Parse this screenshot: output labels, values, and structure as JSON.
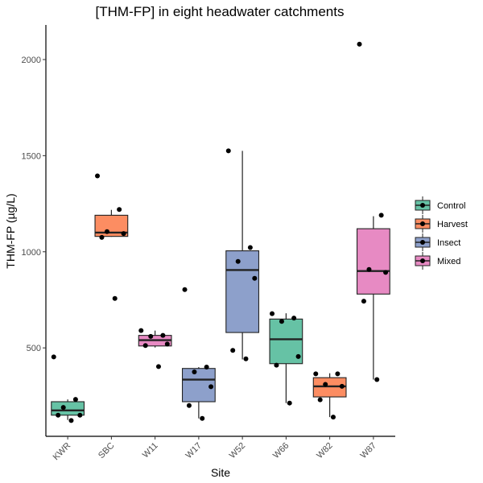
{
  "chart_data": {
    "type": "box",
    "title": "[THM-FP] in eight headwater catchments",
    "xlabel": "Site",
    "ylabel": "THM-FP (µg/L)",
    "ylim": [
      40,
      2180
    ],
    "yticks": [
      500,
      1000,
      1500,
      2000
    ],
    "categories": [
      "KWR",
      "SBC",
      "W11",
      "W17",
      "W52",
      "W66",
      "W82",
      "W87"
    ],
    "legend": {
      "position": "right",
      "entries": [
        {
          "name": "Control",
          "color": "#66c2a5"
        },
        {
          "name": "Harvest",
          "color": "#fc8d62"
        },
        {
          "name": "Insect",
          "color": "#8da0cb"
        },
        {
          "name": "Mixed",
          "color": "#e78ac3"
        }
      ]
    },
    "boxes": [
      {
        "site": "KWR",
        "group": "Control",
        "whisker_low": 125,
        "q1": 150,
        "median": 175,
        "q3": 220,
        "whisker_high": 232,
        "points": [
          453,
          232,
          190,
          150,
          150,
          122
        ]
      },
      {
        "site": "SBC",
        "group": "Harvest",
        "whisker_low": 1078,
        "q1": 1080,
        "median": 1100,
        "q3": 1190,
        "whisker_high": 1218,
        "points": [
          1395,
          1220,
          1105,
          1095,
          1075,
          757
        ]
      },
      {
        "site": "W11",
        "group": "Mixed",
        "whisker_low": 502,
        "q1": 510,
        "median": 540,
        "q3": 565,
        "whisker_high": 590,
        "points": [
          590,
          565,
          560,
          520,
          512,
          403
        ]
      },
      {
        "site": "W17",
        "group": "Insect",
        "whisker_low": 133,
        "q1": 220,
        "median": 335,
        "q3": 393,
        "whisker_high": 400,
        "points": [
          803,
          400,
          375,
          298,
          200,
          133
        ]
      },
      {
        "site": "W52",
        "group": "Insect",
        "whisker_low": 440,
        "q1": 580,
        "median": 905,
        "q3": 1005,
        "whisker_high": 1525,
        "points": [
          1525,
          1022,
          950,
          862,
          487,
          443
        ]
      },
      {
        "site": "W66",
        "group": "Control",
        "whisker_low": 213,
        "q1": 418,
        "median": 545,
        "q3": 650,
        "whisker_high": 680,
        "points": [
          678,
          655,
          638,
          455,
          410,
          213
        ]
      },
      {
        "site": "W82",
        "group": "Harvest",
        "whisker_low": 140,
        "q1": 245,
        "median": 300,
        "q3": 345,
        "whisker_high": 368,
        "points": [
          365,
          365,
          310,
          300,
          230,
          140
        ]
      },
      {
        "site": "W87",
        "group": "Mixed",
        "whisker_low": 335,
        "q1": 780,
        "median": 900,
        "q3": 1120,
        "whisker_high": 1185,
        "points": [
          2080,
          1190,
          908,
          893,
          743,
          335
        ]
      }
    ]
  }
}
